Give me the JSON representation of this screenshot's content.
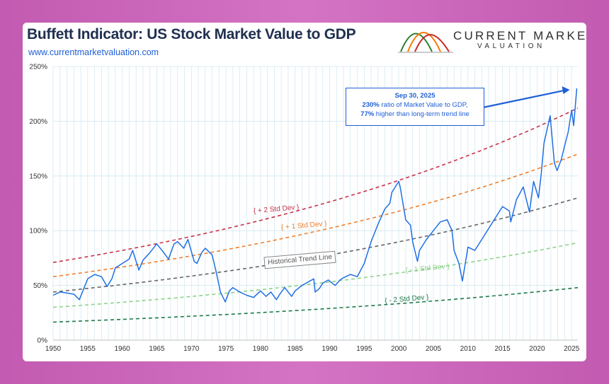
{
  "header": {
    "title": "Buffett Indicator: US Stock Market Value to GDP",
    "url": "www.currentmarketvaluation.com"
  },
  "logo": {
    "name": "CURRENT MARKET",
    "sub": "VALUATION",
    "colors": [
      "#2e7d32",
      "#f57c00",
      "#c62828"
    ]
  },
  "callout": {
    "date": "Sep 30, 2025",
    "line1_bold": "230%",
    "line1_rest": " ratio of Market Value to GDP,",
    "line2_bold": "77%",
    "line2_rest": " higher than long-term trend line"
  },
  "chart_data": {
    "type": "line",
    "title": "Buffett Indicator: US Stock Market Value to GDP",
    "xlim": [
      1950,
      2025.9
    ],
    "ylim": [
      0,
      250
    ],
    "x_ticks": [
      1950,
      1955,
      1960,
      1965,
      1970,
      1975,
      1980,
      1985,
      1990,
      1995,
      2000,
      2005,
      2010,
      2015,
      2020,
      2025
    ],
    "y_ticks": [
      0,
      50,
      100,
      150,
      200,
      250
    ],
    "y_tick_labels": [
      "0%",
      "50%",
      "100%",
      "150%",
      "200%",
      "250%"
    ],
    "grid": true,
    "bands": [
      {
        "label": "+ 2 Std Dev",
        "color": "#c8324a",
        "start": 71,
        "end": 212,
        "label_x": 1979,
        "label_y": 116
      },
      {
        "label": "+ 1 Std Dev",
        "color": "#f07f2a",
        "start": 58,
        "end": 170,
        "label_x": 1983,
        "label_y": 101
      },
      {
        "label": "Historical Trend Line",
        "color": "#666666",
        "start": 44,
        "end": 130
      },
      {
        "label": "- 1 Std Dev",
        "color": "#8fd18b",
        "start": 30,
        "end": 89,
        "label_x": 2001,
        "label_y": 62
      },
      {
        "label": "- 2 Std Dev",
        "color": "#1e7a4a",
        "start": 16.5,
        "end": 48,
        "label_x": 1998,
        "label_y": 34
      }
    ],
    "series": [
      {
        "color": "#1f6fe5",
        "x": [
          1950,
          1951,
          1952,
          1953,
          1953.8,
          1954.5,
          1955,
          1956,
          1957,
          1957.8,
          1958.5,
          1959,
          1960,
          1961,
          1961.5,
          1962.4,
          1963,
          1964,
          1965,
          1966,
          1966.7,
          1967.5,
          1968,
          1968.9,
          1969.5,
          1970.4,
          1970.8,
          1971.5,
          1972,
          1973,
          1973.6,
          1974.2,
          1974.9,
          1975.5,
          1976,
          1977,
          1978,
          1979,
          1980,
          1980.8,
          1981.5,
          1982.3,
          1982.9,
          1983.5,
          1984.5,
          1985,
          1986,
          1987.7,
          1987.9,
          1988.5,
          1989,
          1989.8,
          1990.8,
          1991.5,
          1992,
          1993,
          1994,
          1995,
          1996,
          1997,
          1998,
          1998.7,
          1999,
          2000,
          2000.2,
          2001,
          2001.7,
          2002,
          2002.7,
          2003,
          2004,
          2005,
          2006,
          2007,
          2007.7,
          2008,
          2008.7,
          2009.2,
          2010,
          2011,
          2012,
          2013,
          2014,
          2015,
          2016,
          2016.2,
          2017,
          2018,
          2018.9,
          2019.5,
          2020.2,
          2020.6,
          2021,
          2021.9,
          2022.5,
          2022.9,
          2023.5,
          2024,
          2024.5,
          2025,
          2025.3,
          2025.75
        ],
        "values": [
          41,
          44,
          43,
          42,
          37,
          48,
          56,
          60,
          58,
          49,
          56,
          66,
          70,
          74,
          82,
          64,
          73,
          80,
          88,
          80,
          74,
          88,
          90,
          84,
          92,
          72,
          70,
          80,
          84,
          78,
          62,
          44,
          35,
          45,
          48,
          44,
          41,
          39,
          45,
          40,
          44,
          37,
          43,
          48,
          40,
          45,
          50,
          56,
          44,
          47,
          52,
          55,
          50,
          55,
          57,
          60,
          58,
          70,
          90,
          106,
          120,
          125,
          135,
          145,
          140,
          110,
          105,
          90,
          72,
          82,
          92,
          100,
          108,
          110,
          100,
          82,
          70,
          54,
          85,
          82,
          92,
          102,
          112,
          122,
          118,
          108,
          128,
          140,
          117,
          145,
          130,
          152,
          180,
          205,
          162,
          155,
          165,
          178,
          190,
          210,
          196,
          230
        ]
      }
    ]
  }
}
